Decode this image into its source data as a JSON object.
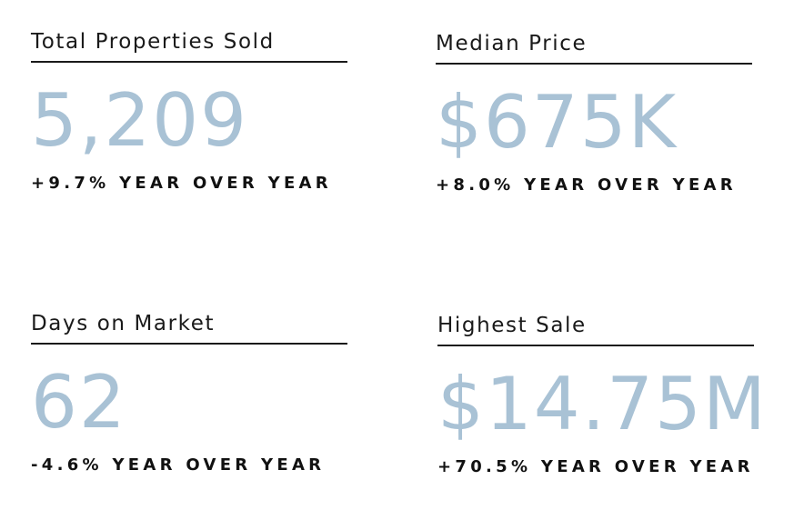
{
  "stats": [
    {
      "title": "Total Properties Sold",
      "value": "5,209",
      "change": "+9.7% YEAR OVER YEAR"
    },
    {
      "title": "Median Price",
      "value": "$675K",
      "change": "+8.0% YEAR OVER YEAR"
    },
    {
      "title": "Days on Market",
      "value": "62",
      "change": "-4.6% YEAR OVER YEAR"
    },
    {
      "title": "Highest Sale",
      "value": "$14.75M",
      "change": "+70.5% YEAR OVER YEAR"
    }
  ],
  "colors": {
    "value": "#a9c2d5",
    "text": "#111111",
    "rule": "#1a1a1a"
  }
}
